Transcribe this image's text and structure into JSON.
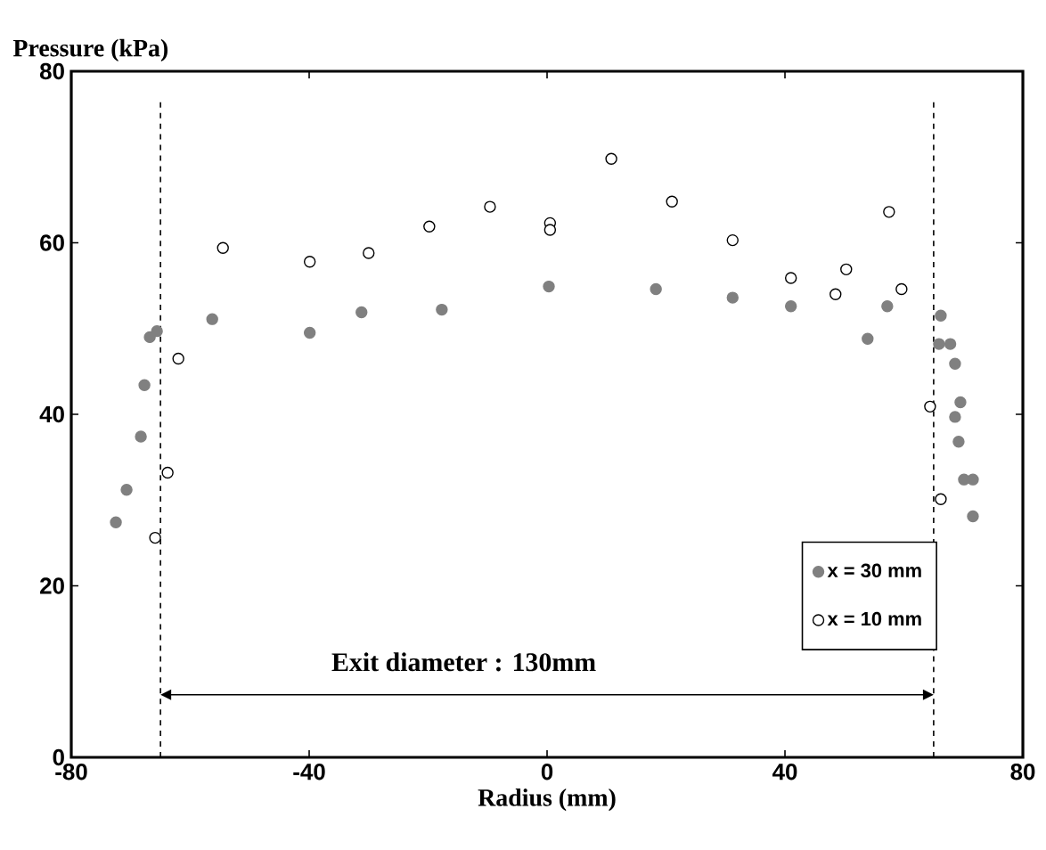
{
  "chart_data": {
    "type": "scatter",
    "xlabel": "Radius (mm)",
    "ylabel": "Pressure (kPa)",
    "xlim": [
      -80,
      80
    ],
    "ylim": [
      0,
      80
    ],
    "xticks": [
      -80,
      -40,
      0,
      40,
      80
    ],
    "yticks": [
      0,
      20,
      40,
      60,
      80
    ],
    "grid": false,
    "legend": "bottom right",
    "marker": "circle",
    "series": [
      {
        "name": "x = 30 mm",
        "color": "#808080",
        "x": [
          -72.5,
          -70.7,
          -68.3,
          -67.7,
          -66.8,
          -65.6,
          -56.3,
          -39.9,
          -31.2,
          -17.7,
          0.3,
          18.3,
          31.2,
          41.0,
          53.9,
          57.2,
          66.2,
          65.9,
          67.8,
          68.6,
          69.5,
          68.6,
          69.2,
          70.1,
          71.6,
          71.6
        ],
        "values": [
          27.4,
          31.2,
          37.4,
          43.4,
          49.0,
          49.7,
          51.1,
          49.5,
          51.9,
          52.2,
          54.9,
          54.6,
          53.6,
          52.6,
          48.8,
          52.6,
          51.5,
          48.2,
          48.2,
          45.9,
          41.4,
          39.7,
          36.8,
          32.4,
          32.4,
          28.1
        ]
      },
      {
        "name": "x = 10 mm",
        "color": "#ffffff",
        "x": [
          -65.9,
          -63.8,
          -62.0,
          -54.5,
          -39.9,
          -30.0,
          -19.8,
          -9.6,
          0.5,
          0.5,
          10.8,
          21.0,
          31.2,
          41.0,
          48.5,
          50.3,
          57.5,
          59.6,
          64.4,
          66.2
        ],
        "values": [
          25.6,
          33.2,
          46.5,
          59.4,
          57.8,
          58.8,
          61.9,
          64.2,
          62.3,
          61.5,
          69.8,
          64.8,
          60.3,
          55.9,
          54.0,
          56.9,
          63.6,
          54.6,
          40.9,
          30.1
        ]
      }
    ],
    "ref_lines": [
      {
        "axis": "x",
        "value": -65,
        "line_style": "dashed"
      },
      {
        "axis": "x",
        "value": 65,
        "line_style": "dashed"
      }
    ],
    "annotations": [
      "Exit diameter : 130mm"
    ]
  }
}
